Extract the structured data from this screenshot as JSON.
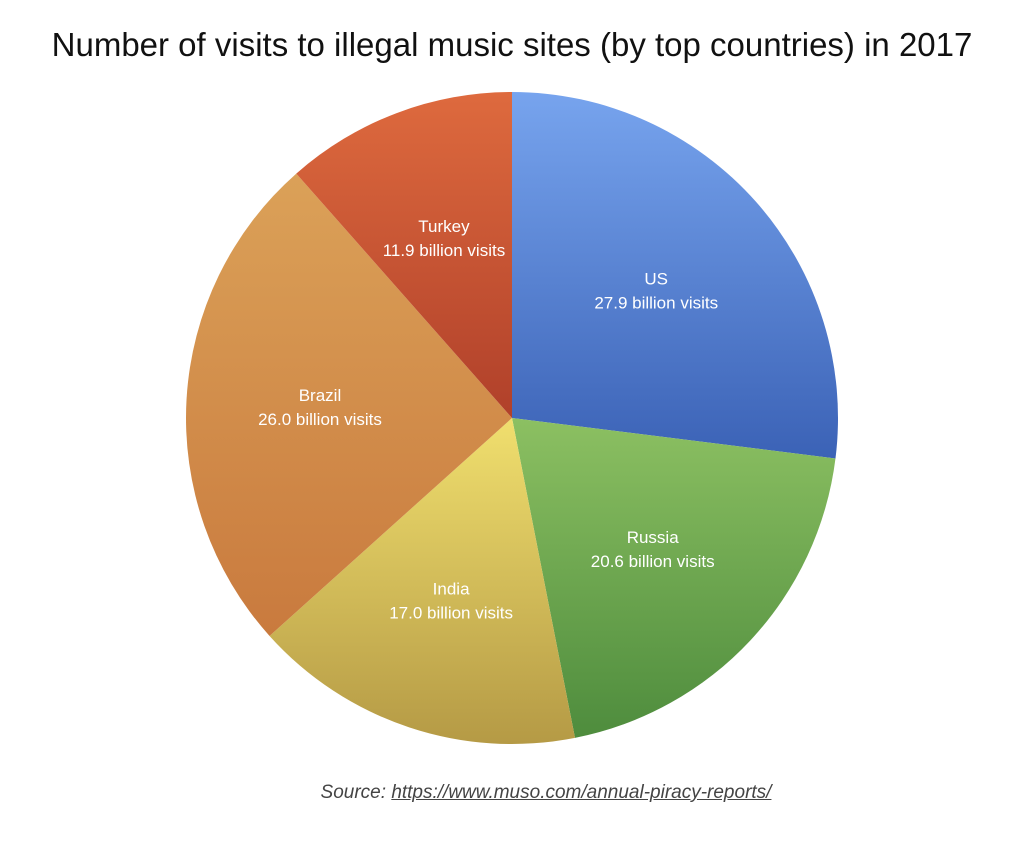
{
  "chart_data": {
    "type": "pie",
    "title": "Number of visits to illegal music sites (by top countries) in 2017",
    "unit": "billion visits",
    "slices": [
      {
        "name": "US",
        "value": 27.9,
        "label": "27.9 billion visits",
        "color_top": "#77a4ee",
        "color_bottom": "#3b62b6"
      },
      {
        "name": "Russia",
        "value": 20.6,
        "label": "20.6 billion visits",
        "color_top": "#8cc062",
        "color_bottom": "#4e8c3d"
      },
      {
        "name": "India",
        "value": 17.0,
        "label": "17.0 billion visits",
        "color_top": "#f0df6e",
        "color_bottom": "#b59a45"
      },
      {
        "name": "Brazil",
        "value": 26.0,
        "label": "26.0 billion visits",
        "color_top": "#dba158",
        "color_bottom": "#c97a3e"
      },
      {
        "name": "Turkey",
        "value": 11.9,
        "label": "11.9 billion visits",
        "color_top": "#de6a3e",
        "color_bottom": "#b0402a"
      }
    ]
  },
  "source": {
    "prefix": "Source: ",
    "link_text": "https://www.muso.com/annual-piracy-reports/"
  }
}
